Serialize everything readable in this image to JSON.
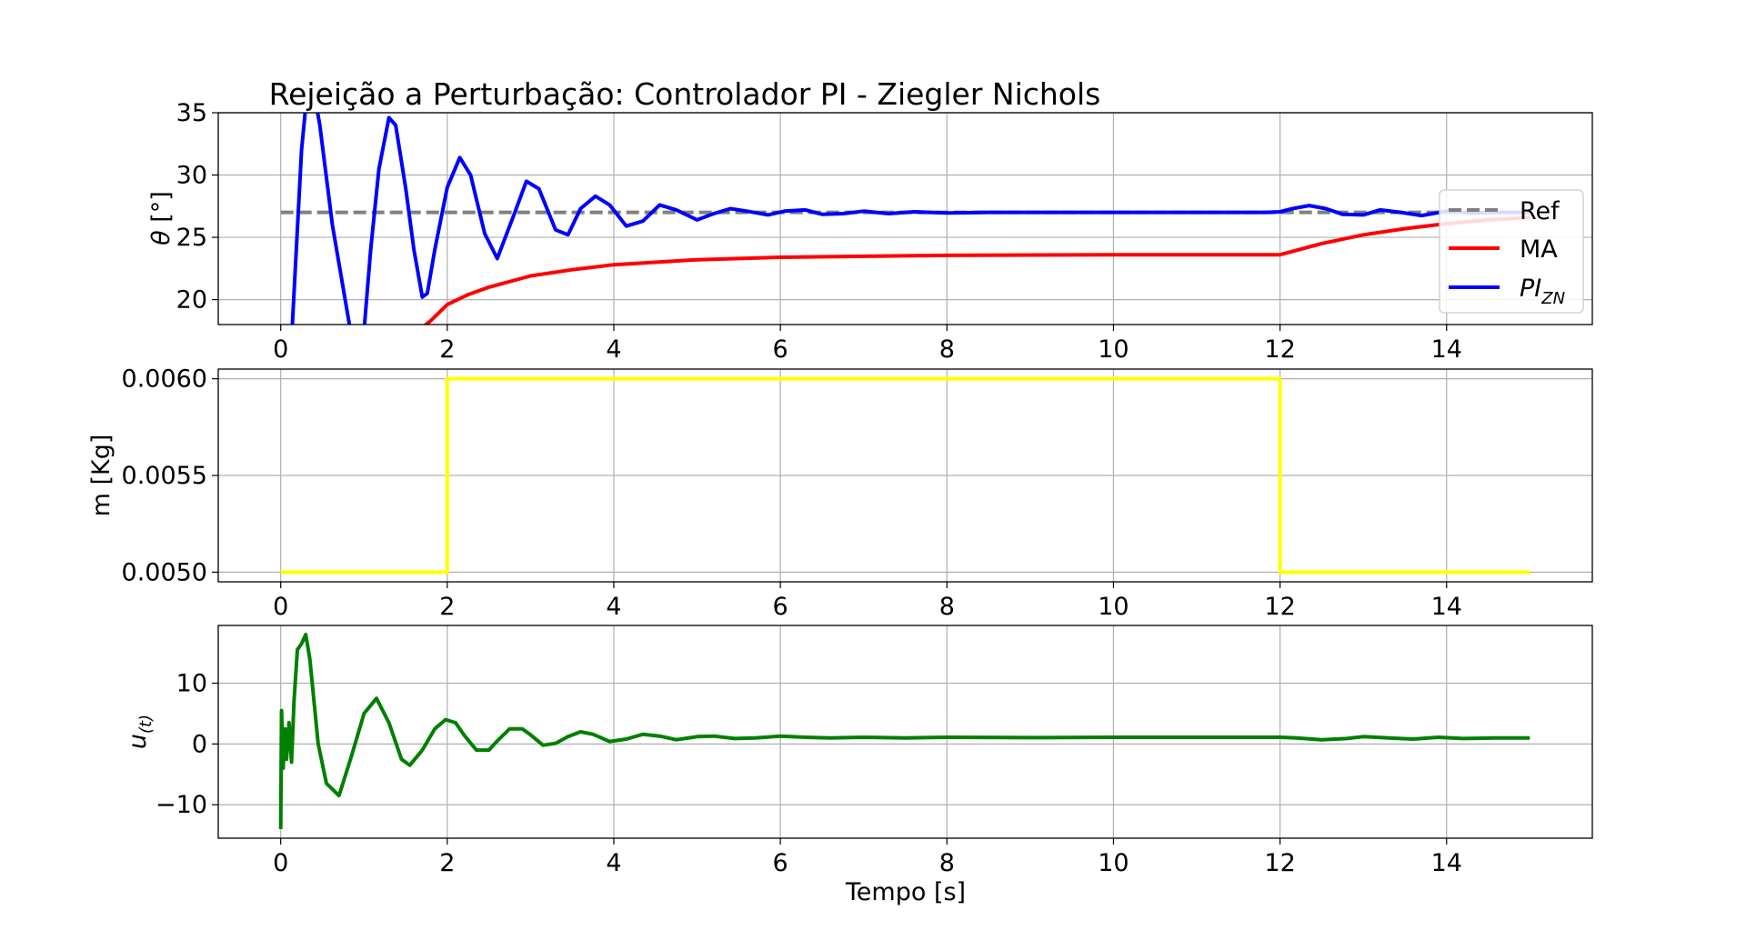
{
  "figure_title": "Rejeição a Perturbação: Controlador PI - Ziegler Nichols",
  "xlabel": "Tempo [s]",
  "legend": {
    "placement": "right",
    "entries": [
      {
        "label": "Ref",
        "color": "#808080",
        "style": "dashed"
      },
      {
        "label": "MA",
        "color": "#ff0000",
        "style": "solid"
      },
      {
        "label_main": "PI",
        "label_sub": "ZN",
        "color": "#0000ff",
        "style": "solid"
      }
    ]
  },
  "panel_ylabels": {
    "theta": {
      "main": "θ",
      "rest": " [°]"
    },
    "mass": "m [Kg]",
    "u": {
      "main": "u",
      "sub": "(t)"
    }
  },
  "chart_data": [
    {
      "type": "line",
      "title": "Rejeição a Perturbação: Controlador PI - Ziegler Nichols",
      "ylabel": "θ [°]",
      "xlim": [
        -0.75,
        15.75
      ],
      "ylim": [
        18,
        35
      ],
      "xticks": [
        0,
        2,
        4,
        6,
        8,
        10,
        12,
        14
      ],
      "yticks": [
        20,
        25,
        30,
        35
      ],
      "grid": true,
      "series": [
        {
          "name": "Ref",
          "color": "#808080",
          "dashed": true,
          "x": [
            0,
            15
          ],
          "y": [
            27,
            27
          ]
        },
        {
          "name": "MA",
          "color": "#ff0000",
          "x": [
            1.65,
            1.8,
            2.0,
            2.25,
            2.5,
            3.0,
            3.5,
            4.0,
            5.0,
            6.0,
            8.0,
            10.0,
            12.0,
            12.5,
            13.0,
            13.5,
            14.0,
            14.5,
            15.0
          ],
          "y": [
            17.5,
            18.3,
            19.6,
            20.4,
            21.0,
            21.9,
            22.4,
            22.8,
            23.2,
            23.4,
            23.55,
            23.6,
            23.6,
            24.5,
            25.2,
            25.7,
            26.1,
            26.4,
            26.6
          ]
        },
        {
          "name": "PI_ZN",
          "color": "#0000ff",
          "x": [
            0.02,
            0.14,
            0.25,
            0.3,
            0.35,
            0.47,
            0.62,
            0.8,
            0.9,
            1.0,
            1.08,
            1.18,
            1.3,
            1.38,
            1.5,
            1.6,
            1.7,
            1.76,
            1.85,
            2.0,
            2.15,
            2.28,
            2.45,
            2.6,
            2.8,
            2.95,
            3.1,
            3.3,
            3.45,
            3.6,
            3.78,
            3.95,
            4.15,
            4.35,
            4.55,
            4.75,
            5.0,
            5.2,
            5.4,
            5.6,
            5.85,
            6.05,
            6.3,
            6.5,
            6.75,
            7.0,
            7.3,
            7.6,
            8.0,
            8.5,
            9.0,
            10.0,
            11.0,
            11.8,
            12.0,
            12.15,
            12.35,
            12.55,
            12.75,
            13.0,
            13.2,
            13.45,
            13.7,
            14.0,
            14.3,
            14.6,
            15.0
          ],
          "y": [
            15,
            18,
            32,
            35.5,
            38.5,
            34,
            26,
            19,
            15,
            17.5,
            24,
            30.5,
            34.6,
            34,
            29,
            24,
            20.2,
            20.5,
            24.0,
            29.0,
            31.4,
            30.0,
            25.3,
            23.3,
            26.8,
            29.5,
            28.9,
            25.6,
            25.2,
            27.3,
            28.3,
            27.6,
            25.9,
            26.3,
            27.6,
            27.2,
            26.4,
            26.9,
            27.3,
            27.1,
            26.8,
            27.1,
            27.2,
            26.85,
            26.9,
            27.1,
            26.9,
            27.05,
            26.95,
            27.0,
            27.0,
            27.0,
            27.0,
            27.0,
            27.05,
            27.3,
            27.55,
            27.3,
            26.85,
            26.8,
            27.2,
            27.0,
            26.75,
            27.1,
            26.95,
            27.0,
            27.0
          ]
        }
      ]
    },
    {
      "type": "line",
      "ylabel": "m [Kg]",
      "xlim": [
        -0.75,
        15.75
      ],
      "ylim": [
        0.00495,
        0.00605
      ],
      "xticks": [
        0,
        2,
        4,
        6,
        8,
        10,
        12,
        14
      ],
      "yticks": [
        0.005,
        0.0055,
        0.006
      ],
      "ytick_labels": [
        "0.0050",
        "0.0055",
        "0.0060"
      ],
      "grid": true,
      "series": [
        {
          "name": "m",
          "color": "#ffff00",
          "x": [
            0,
            2,
            2,
            12,
            12,
            15
          ],
          "y": [
            0.005,
            0.005,
            0.006,
            0.006,
            0.005,
            0.005
          ]
        }
      ]
    },
    {
      "type": "line",
      "ylabel": "u(t)",
      "xlabel": "Tempo [s]",
      "xlim": [
        -0.75,
        15.75
      ],
      "ylim": [
        -15.5,
        19.5
      ],
      "xticks": [
        0,
        2,
        4,
        6,
        8,
        10,
        12,
        14
      ],
      "yticks": [
        -10,
        0,
        10
      ],
      "ytick_labels": [
        "−10",
        "0",
        "10"
      ],
      "grid": true,
      "series": [
        {
          "name": "u",
          "color": "#008000",
          "x": [
            0,
            0.01,
            0.03,
            0.05,
            0.07,
            0.1,
            0.13,
            0.16,
            0.2,
            0.25,
            0.3,
            0.35,
            0.45,
            0.55,
            0.7,
            0.85,
            1.0,
            1.15,
            1.3,
            1.45,
            1.55,
            1.7,
            1.85,
            1.98,
            2.1,
            2.2,
            2.35,
            2.5,
            2.6,
            2.75,
            2.9,
            3.0,
            3.15,
            3.3,
            3.45,
            3.6,
            3.75,
            3.95,
            4.15,
            4.35,
            4.55,
            4.75,
            5.0,
            5.2,
            5.45,
            5.7,
            6.0,
            6.3,
            6.6,
            7.0,
            7.5,
            8.0,
            9.0,
            10.0,
            11.0,
            12.0,
            12.2,
            12.5,
            12.8,
            13.0,
            13.3,
            13.6,
            13.9,
            14.2,
            14.6,
            15.0
          ],
          "y": [
            -14,
            5.5,
            -4,
            2.5,
            -2.5,
            3.5,
            -3,
            7,
            15.5,
            16.5,
            18,
            14,
            0,
            -6.5,
            -8.5,
            -2,
            5,
            7.5,
            3.5,
            -2.5,
            -3.5,
            -1,
            2.5,
            4,
            3.5,
            1.5,
            -1,
            -1,
            0.5,
            2.5,
            2.5,
            1.5,
            -0.2,
            0.1,
            1.2,
            2.0,
            1.6,
            0.4,
            0.8,
            1.6,
            1.3,
            0.7,
            1.2,
            1.3,
            0.9,
            1.0,
            1.3,
            1.1,
            1.0,
            1.1,
            1.0,
            1.1,
            1.05,
            1.1,
            1.1,
            1.1,
            1.0,
            0.7,
            0.9,
            1.2,
            1.0,
            0.8,
            1.1,
            0.9,
            1.0,
            1.0
          ]
        }
      ]
    }
  ]
}
